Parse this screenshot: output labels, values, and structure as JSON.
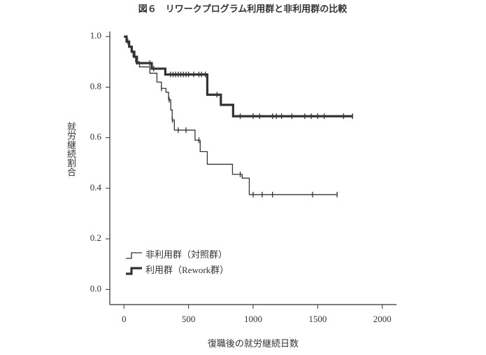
{
  "chart_data": {
    "type": "step",
    "title": "図６　リワークプログラム利用群と非利用群の比較",
    "x_label": "復職後の就労継続日数",
    "y_label": "就労継続割合",
    "xlim": [
      -110,
      2110
    ],
    "ylim": [
      -0.06,
      1.02
    ],
    "xticks": [
      0,
      500,
      1000,
      1500,
      2000
    ],
    "yticks": [
      {
        "value": 0,
        "label": "0.0"
      },
      0.2,
      0.4,
      0.6,
      0.8,
      {
        "value": 1,
        "label": "1.0"
      }
    ],
    "series": [
      {
        "name": "非利用群（対照群）",
        "color": "#333333",
        "width": 1.3,
        "x": [
          0,
          20,
          40,
          55,
          70,
          90,
          120,
          200,
          255,
          290,
          325,
          345,
          362,
          373,
          390,
          550,
          590,
          645,
          840,
          915,
          970,
          1650
        ],
        "values": [
          1.0,
          0.98,
          0.96,
          0.94,
          0.92,
          0.9,
          0.88,
          0.855,
          0.82,
          0.795,
          0.78,
          0.75,
          0.71,
          0.67,
          0.63,
          0.59,
          0.545,
          0.495,
          0.455,
          0.44,
          0.375,
          0.375
        ],
        "censored": [
          100,
          290,
          350,
          375,
          420,
          480,
          580,
          900,
          1000,
          1070,
          1150,
          1460,
          1650
        ]
      },
      {
        "name": "利用群（Rework群）",
        "color": "#333333",
        "width": 3.2,
        "x": [
          0,
          20,
          40,
          60,
          80,
          100,
          215,
          320,
          645,
          750,
          845,
          1770
        ],
        "values": [
          1.0,
          0.98,
          0.96,
          0.94,
          0.92,
          0.895,
          0.873,
          0.85,
          0.77,
          0.73,
          0.685,
          0.685
        ],
        "censored": [
          30,
          200,
          230,
          360,
          380,
          400,
          420,
          440,
          460,
          480,
          500,
          540,
          580,
          600,
          630,
          720,
          900,
          1000,
          1050,
          1150,
          1180,
          1220,
          1300,
          1400,
          1450,
          1500,
          1550,
          1700,
          1770
        ]
      }
    ]
  }
}
